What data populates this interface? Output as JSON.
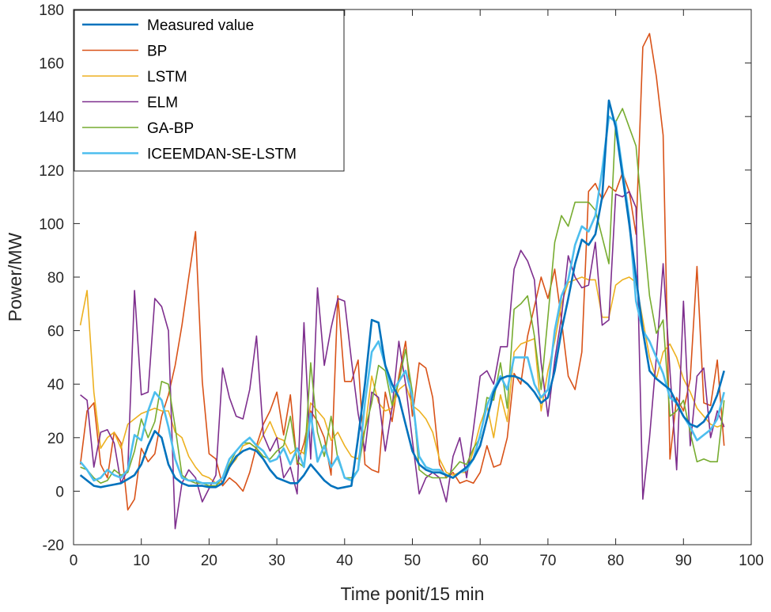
{
  "chart_data": {
    "type": "line",
    "xlabel": "Time ponit/15 min",
    "ylabel": "Power/MW",
    "xlim": [
      0,
      100
    ],
    "ylim": [
      -20,
      180
    ],
    "xticks": [
      "0",
      "10",
      "20",
      "30",
      "40",
      "50",
      "60",
      "70",
      "80",
      "90",
      "100"
    ],
    "yticks": [
      "-20",
      "0",
      "20",
      "40",
      "60",
      "80",
      "100",
      "120",
      "140",
      "160",
      "180"
    ],
    "grid": false,
    "legend_position": "top-left",
    "x": [
      1,
      2,
      3,
      4,
      5,
      6,
      7,
      8,
      9,
      10,
      11,
      12,
      13,
      14,
      15,
      16,
      17,
      18,
      19,
      20,
      21,
      22,
      23,
      24,
      25,
      26,
      27,
      28,
      29,
      30,
      31,
      32,
      33,
      34,
      35,
      36,
      37,
      38,
      39,
      40,
      41,
      42,
      43,
      44,
      45,
      46,
      47,
      48,
      49,
      50,
      51,
      52,
      53,
      54,
      55,
      56,
      57,
      58,
      59,
      60,
      61,
      62,
      63,
      64,
      65,
      66,
      67,
      68,
      69,
      70,
      71,
      72,
      73,
      74,
      75,
      76,
      77,
      78,
      79,
      80,
      81,
      82,
      83,
      84,
      85,
      86,
      87,
      88,
      89,
      90,
      91,
      92,
      93,
      94,
      95,
      96
    ],
    "series": [
      {
        "name": "Measured value",
        "color": "#0072BD",
        "values": [
          6,
          4,
          2,
          1.5,
          2,
          2.5,
          3,
          4.5,
          6,
          10,
          17,
          22.5,
          20,
          10,
          5,
          3,
          2,
          2,
          2,
          1.5,
          1.5,
          3,
          9,
          13,
          15,
          16,
          15,
          12,
          8,
          5,
          4,
          3,
          3,
          6,
          10,
          7,
          4,
          2,
          1,
          1.5,
          2,
          20,
          40,
          64,
          63,
          47,
          40,
          35,
          25,
          15,
          10,
          8,
          7,
          7,
          6,
          5,
          7,
          9,
          12,
          17,
          27,
          37,
          42,
          43,
          43,
          42,
          40,
          37,
          33,
          35,
          45,
          60,
          72,
          85,
          94,
          92,
          96,
          110,
          146,
          136,
          118,
          100,
          80,
          60,
          45,
          42,
          40,
          38,
          33,
          28,
          25,
          24,
          26,
          30,
          36,
          45
        ]
      },
      {
        "name": "BP",
        "color": "#D95319",
        "values": [
          10,
          30,
          33,
          10,
          5,
          22,
          18,
          -7,
          -3,
          16,
          11,
          14,
          28,
          36,
          47,
          62,
          80,
          97,
          41,
          14,
          12,
          2,
          5,
          3,
          0,
          7,
          17,
          25,
          30,
          37,
          21,
          36,
          10,
          18,
          30,
          26,
          20,
          6,
          73,
          41,
          41,
          49,
          10,
          8,
          7,
          37,
          26,
          43,
          56,
          28,
          48,
          46,
          35,
          10,
          5,
          7,
          3,
          4,
          3,
          7,
          17,
          9,
          10,
          20,
          44,
          40,
          58,
          69,
          80,
          72,
          83,
          64,
          43,
          38,
          52,
          112,
          115,
          109,
          114,
          112,
          119,
          112,
          96,
          166,
          171,
          155,
          133,
          12,
          35,
          30,
          42,
          84,
          33,
          32,
          49,
          17
        ]
      },
      {
        "name": "LSTM",
        "color": "#EDB120",
        "values": [
          62,
          75,
          37,
          16,
          20,
          22,
          16,
          25,
          27,
          29,
          30,
          31,
          30,
          30,
          22,
          20,
          13,
          9,
          6,
          5,
          3,
          3,
          9,
          12,
          17,
          18,
          16,
          21,
          26,
          20,
          19,
          14,
          16,
          14,
          33,
          30,
          27,
          19,
          22,
          17,
          13,
          12,
          23,
          43,
          33,
          30,
          31,
          38,
          40,
          32,
          30,
          27,
          22,
          12,
          7,
          6,
          7,
          7,
          15,
          25,
          32,
          20,
          36,
          26,
          52,
          55,
          56,
          57,
          30,
          45,
          56,
          70,
          78,
          79,
          80,
          79,
          79,
          65,
          65,
          77,
          79,
          80,
          78,
          64,
          50,
          42,
          52,
          55,
          50,
          42,
          37,
          31,
          28,
          25,
          24,
          25
        ]
      },
      {
        "name": "ELM",
        "color": "#7E2F8E",
        "values": [
          36,
          34,
          9,
          22,
          23,
          18,
          3,
          8,
          75,
          36,
          37,
          72,
          69,
          60,
          -14,
          3,
          8,
          5,
          -4,
          1,
          6,
          46,
          35,
          28,
          27,
          38,
          58,
          21,
          15,
          20,
          5,
          9,
          -1,
          63,
          12,
          76,
          47,
          61,
          72,
          71,
          49,
          29,
          15,
          37,
          35,
          15,
          31,
          56,
          40,
          19,
          -1,
          5,
          7,
          5,
          -4,
          13,
          20,
          5,
          23,
          43,
          45,
          40,
          54,
          54,
          83,
          90,
          86,
          79,
          48,
          28,
          49,
          65,
          88,
          80,
          76,
          77,
          93,
          62,
          64,
          111,
          110,
          112,
          106,
          -3,
          20,
          50,
          85,
          45,
          8,
          71,
          17,
          43,
          46,
          20,
          30,
          24
        ]
      },
      {
        "name": "GA-BP",
        "color": "#77AC30",
        "values": [
          9,
          8,
          5,
          3,
          4,
          8,
          6,
          7,
          15,
          27,
          20,
          26,
          41,
          40,
          24,
          6,
          4,
          3,
          3,
          2,
          2,
          5,
          10,
          15,
          18,
          18,
          16,
          13,
          12,
          15,
          17,
          28,
          11,
          9,
          48,
          22,
          13,
          28,
          12,
          5,
          5,
          8,
          23,
          33,
          47,
          45,
          32,
          41,
          53,
          37,
          8,
          6,
          5,
          5,
          5,
          8,
          11,
          10,
          16,
          20,
          35,
          34,
          48,
          31,
          68,
          70,
          73,
          58,
          38,
          65,
          93,
          103,
          99,
          108,
          108,
          108,
          105,
          95,
          85,
          138,
          143,
          136,
          129,
          100,
          73,
          59,
          64,
          28,
          30,
          34,
          22,
          11,
          12,
          11,
          11,
          34
        ]
      },
      {
        "name": "ICEEMDAN-SE-LSTM",
        "color": "#4DBEEE",
        "values": [
          11,
          8,
          4,
          5,
          8,
          6,
          5,
          8,
          21,
          19,
          30,
          37,
          34,
          24,
          12,
          5,
          4,
          4,
          3,
          3,
          3,
          5,
          12,
          15,
          18,
          20,
          17,
          15,
          11,
          12,
          16,
          10,
          16,
          9,
          29,
          11,
          17,
          9,
          13,
          5,
          4,
          8,
          33,
          52,
          56,
          47,
          37,
          41,
          45,
          35,
          13,
          9,
          8,
          8,
          6,
          5,
          7,
          8,
          12,
          21,
          32,
          38,
          43,
          38,
          50,
          50,
          50,
          40,
          35,
          38,
          60,
          73,
          79,
          92,
          99,
          97,
          103,
          120,
          140,
          138,
          120,
          102,
          71,
          60,
          56,
          50,
          44,
          35,
          33,
          28,
          24,
          19,
          21,
          23,
          27,
          37
        ]
      }
    ]
  }
}
